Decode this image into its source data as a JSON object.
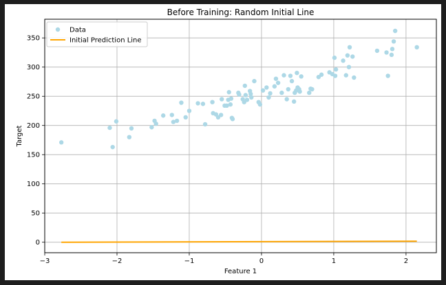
{
  "chart_data": {
    "type": "scatter",
    "title": "Before Training: Random Initial Line",
    "xlabel": "Feature 1",
    "ylabel": "Target",
    "xlim": [
      -3.0,
      2.42
    ],
    "ylim": [
      -18,
      382
    ],
    "xticks": [
      -3,
      -2,
      -1,
      0,
      1,
      2
    ],
    "yticks": [
      0,
      50,
      100,
      150,
      200,
      250,
      300,
      350
    ],
    "grid": true,
    "legend_position": "top-left",
    "series": [
      {
        "name": "Data",
        "kind": "scatter",
        "color": "#add8e6",
        "points": [
          [
            -2.77,
            171
          ],
          [
            -2.1,
            196
          ],
          [
            -2.06,
            163
          ],
          [
            -2.01,
            207
          ],
          [
            -1.83,
            180
          ],
          [
            -1.8,
            195
          ],
          [
            -1.52,
            197
          ],
          [
            -1.48,
            208
          ],
          [
            -1.46,
            203
          ],
          [
            -1.36,
            217
          ],
          [
            -1.24,
            218
          ],
          [
            -1.22,
            206
          ],
          [
            -1.17,
            208
          ],
          [
            -1.11,
            239
          ],
          [
            -1.05,
            214
          ],
          [
            -1.0,
            225
          ],
          [
            -0.88,
            238
          ],
          [
            -0.81,
            237
          ],
          [
            -0.78,
            202
          ],
          [
            -0.68,
            240
          ],
          [
            -0.67,
            221
          ],
          [
            -0.63,
            219
          ],
          [
            -0.6,
            214
          ],
          [
            -0.56,
            218
          ],
          [
            -0.55,
            245
          ],
          [
            -0.51,
            234
          ],
          [
            -0.48,
            234
          ],
          [
            -0.46,
            244
          ],
          [
            -0.45,
            257
          ],
          [
            -0.43,
            236
          ],
          [
            -0.42,
            246
          ],
          [
            -0.41,
            213
          ],
          [
            -0.4,
            211
          ],
          [
            -0.32,
            256
          ],
          [
            -0.31,
            253
          ],
          [
            -0.26,
            245
          ],
          [
            -0.24,
            240
          ],
          [
            -0.23,
            268
          ],
          [
            -0.22,
            252
          ],
          [
            -0.2,
            244
          ],
          [
            -0.16,
            259
          ],
          [
            -0.15,
            254
          ],
          [
            -0.14,
            248
          ],
          [
            -0.1,
            276
          ],
          [
            -0.04,
            240
          ],
          [
            -0.02,
            236
          ],
          [
            0.02,
            260
          ],
          [
            0.07,
            265
          ],
          [
            0.1,
            248
          ],
          [
            0.12,
            255
          ],
          [
            0.18,
            267
          ],
          [
            0.2,
            280
          ],
          [
            0.23,
            273
          ],
          [
            0.28,
            256
          ],
          [
            0.31,
            286
          ],
          [
            0.35,
            245
          ],
          [
            0.37,
            262
          ],
          [
            0.4,
            285
          ],
          [
            0.42,
            276
          ],
          [
            0.45,
            241
          ],
          [
            0.46,
            256
          ],
          [
            0.48,
            260
          ],
          [
            0.49,
            290
          ],
          [
            0.5,
            265
          ],
          [
            0.52,
            262
          ],
          [
            0.53,
            258
          ],
          [
            0.55,
            284
          ],
          [
            0.66,
            256
          ],
          [
            0.68,
            263
          ],
          [
            0.7,
            262
          ],
          [
            0.79,
            283
          ],
          [
            0.83,
            287
          ],
          [
            0.94,
            291
          ],
          [
            0.98,
            288
          ],
          [
            1.01,
            316
          ],
          [
            1.02,
            285
          ],
          [
            1.03,
            296
          ],
          [
            1.13,
            311
          ],
          [
            1.17,
            286
          ],
          [
            1.19,
            320
          ],
          [
            1.21,
            300
          ],
          [
            1.22,
            334
          ],
          [
            1.26,
            318
          ],
          [
            1.28,
            282
          ],
          [
            1.6,
            328
          ],
          [
            1.73,
            325
          ],
          [
            1.75,
            285
          ],
          [
            1.8,
            321
          ],
          [
            1.81,
            331
          ],
          [
            1.83,
            344
          ],
          [
            1.85,
            362
          ],
          [
            2.15,
            334
          ]
        ]
      },
      {
        "name": "Initial Prediction Line",
        "kind": "line",
        "color": "#ffa500",
        "points": [
          [
            -2.77,
            0.0
          ],
          [
            2.15,
            1.7
          ]
        ]
      }
    ]
  }
}
